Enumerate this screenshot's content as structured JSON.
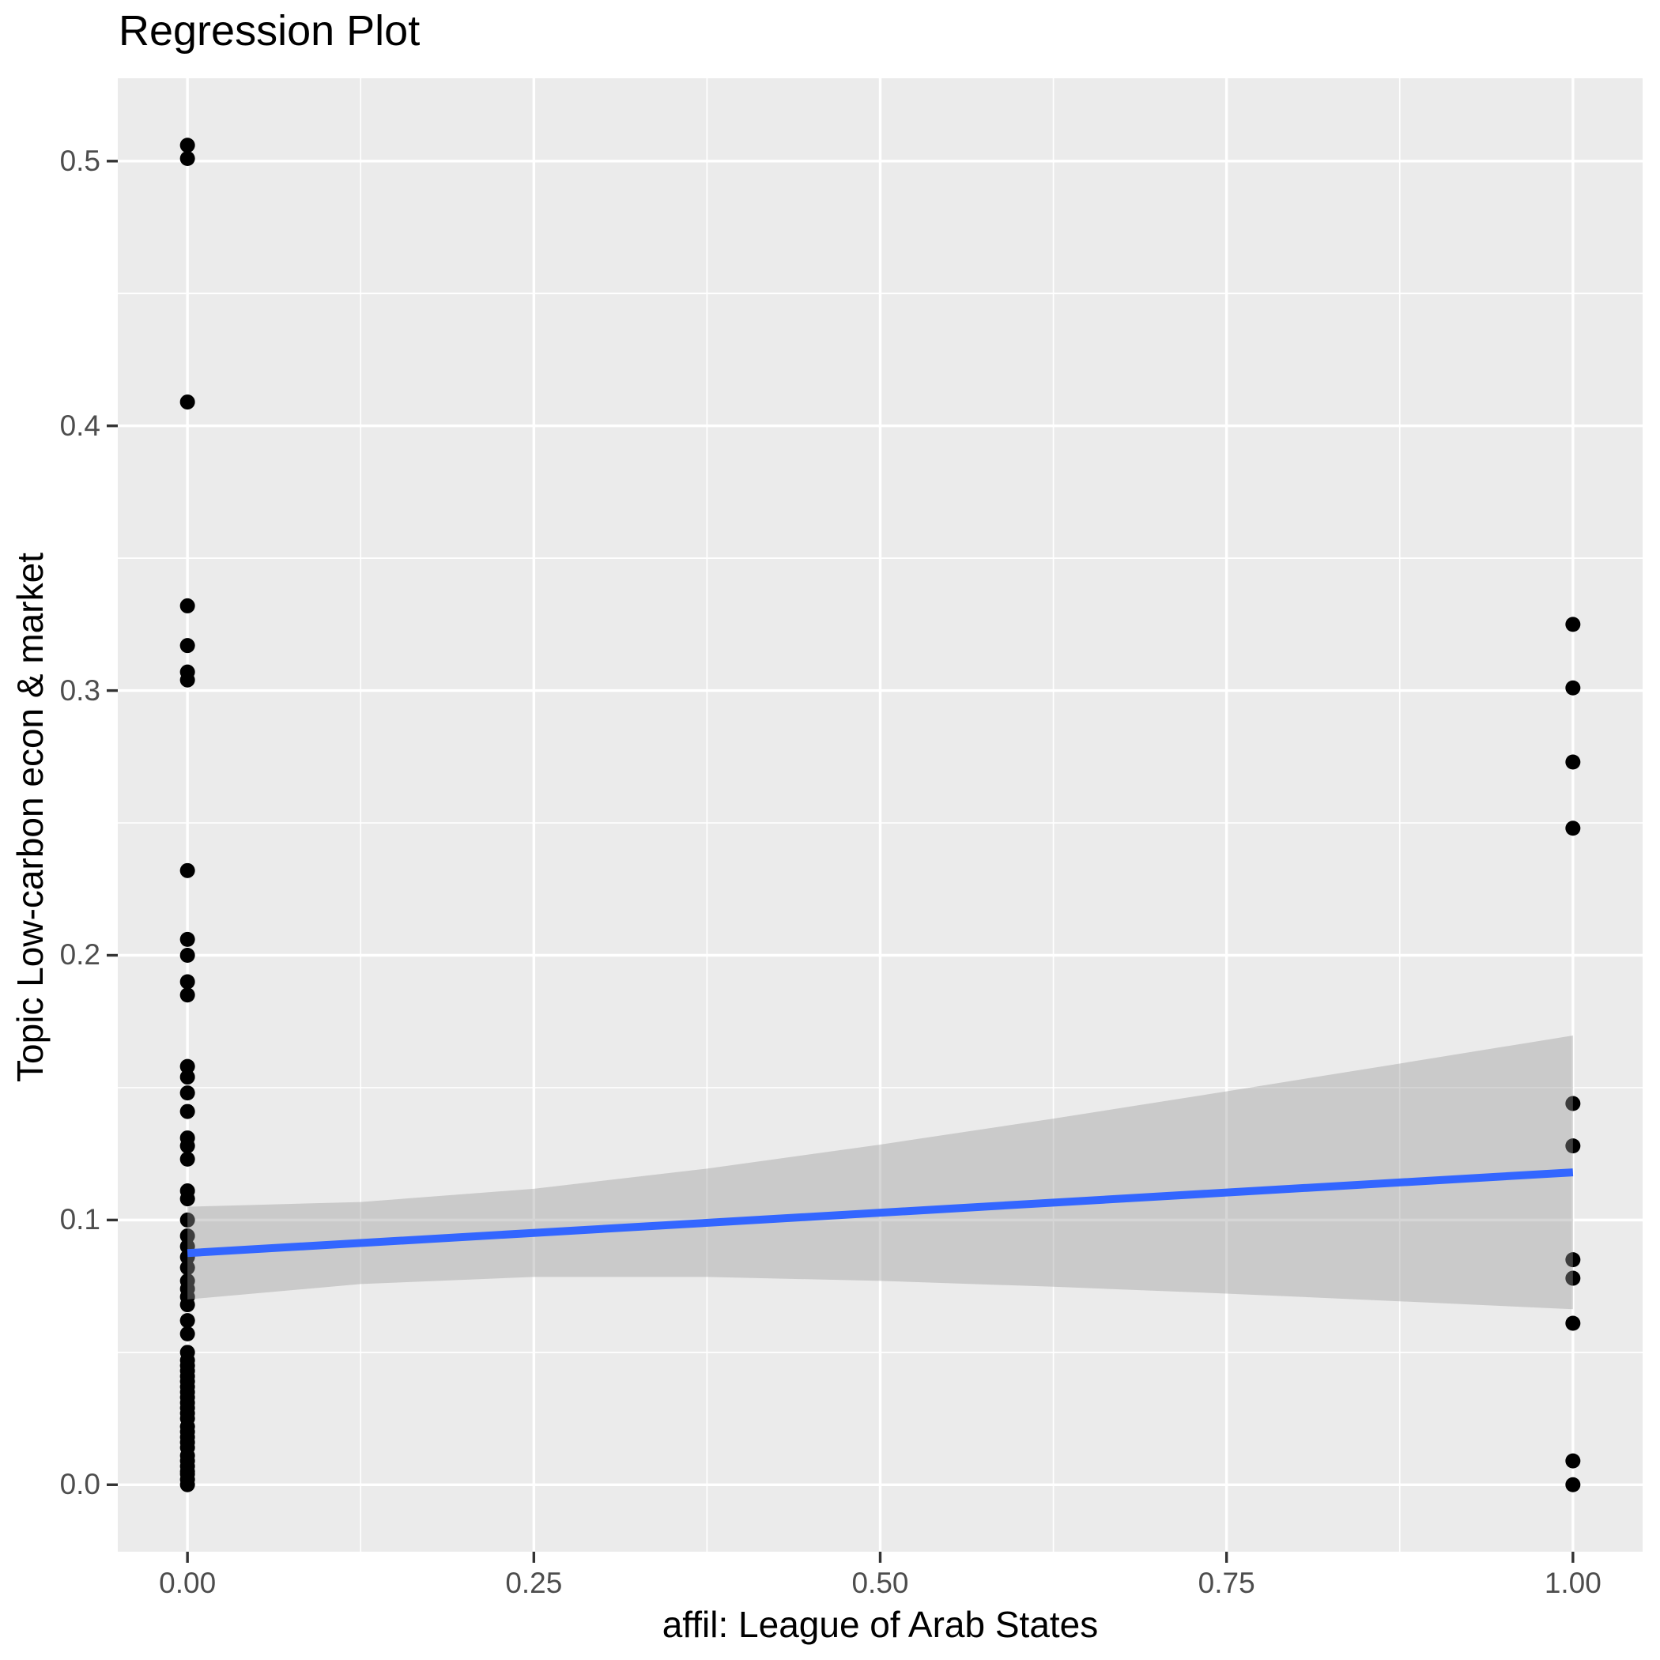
{
  "chart_data": {
    "type": "scatter",
    "title": "Regression Plot",
    "xlabel": "affil: League of Arab States",
    "ylabel": "Topic Low-carbon econ & market",
    "xlim": [
      -0.0503,
      1.0503
    ],
    "ylim": [
      -0.0253,
      0.5313
    ],
    "grid": "major and minor white gridlines on gray panel",
    "legend": "none",
    "x_ticks": [
      {
        "value": 0.0,
        "label": "0.00"
      },
      {
        "value": 0.25,
        "label": "0.25"
      },
      {
        "value": 0.5,
        "label": "0.50"
      },
      {
        "value": 0.75,
        "label": "0.75"
      },
      {
        "value": 1.0,
        "label": "1.00"
      }
    ],
    "y_ticks": [
      {
        "value": 0.0,
        "label": "0.0"
      },
      {
        "value": 0.1,
        "label": "0.1"
      },
      {
        "value": 0.2,
        "label": "0.2"
      },
      {
        "value": 0.3,
        "label": "0.3"
      },
      {
        "value": 0.4,
        "label": "0.4"
      },
      {
        "value": 0.5,
        "label": "0.5"
      }
    ],
    "x_minor_gridlines": [
      0.125,
      0.375,
      0.625,
      0.875
    ],
    "y_minor_gridlines": [
      0.05,
      0.15,
      0.25,
      0.35,
      0.45
    ],
    "series": [
      {
        "name": "affil = 0",
        "x": 0,
        "y": [
          0.506,
          0.501,
          0.409,
          0.332,
          0.317,
          0.307,
          0.304,
          0.232,
          0.206,
          0.2,
          0.19,
          0.185,
          0.158,
          0.154,
          0.148,
          0.141,
          0.131,
          0.128,
          0.123,
          0.111,
          0.108,
          0.1,
          0.094,
          0.09,
          0.086,
          0.082,
          0.077,
          0.074,
          0.071,
          0.068,
          0.062,
          0.057,
          0.05,
          0.047,
          0.045,
          0.043,
          0.041,
          0.039,
          0.037,
          0.035,
          0.033,
          0.031,
          0.029,
          0.027,
          0.025,
          0.022,
          0.02,
          0.018,
          0.016,
          0.014,
          0.011,
          0.009,
          0.007,
          0.005,
          0.004,
          0.002,
          0.0
        ]
      },
      {
        "name": "affil = 1",
        "x": 1,
        "y": [
          0.325,
          0.301,
          0.273,
          0.248,
          0.144,
          0.128,
          0.085,
          0.078,
          0.061,
          0.009,
          0.0
        ]
      }
    ],
    "regression_line": {
      "x0": 0,
      "y0": 0.0875,
      "x1": 1,
      "y1": 0.118
    },
    "confidence_band": {
      "x": [
        0.0,
        0.125,
        0.25,
        0.375,
        0.5,
        0.625,
        0.75,
        0.875,
        1.0
      ],
      "lower": [
        0.07,
        0.0758,
        0.0785,
        0.0785,
        0.077,
        0.0748,
        0.0722,
        0.0693,
        0.0663
      ],
      "upper": [
        0.105,
        0.1068,
        0.1118,
        0.1194,
        0.1285,
        0.1383,
        0.1486,
        0.1591,
        0.1697
      ]
    }
  },
  "colors": {
    "panel_background": "#EBEBEB",
    "gridline": "#FFFFFF",
    "point": "#000000",
    "regression_line": "#3366FF",
    "confidence_band": "#999999",
    "confidence_band_alpha": 0.4,
    "tick_label": "#4D4D4D",
    "tick_mark": "#333333",
    "title_color": "#000000"
  }
}
